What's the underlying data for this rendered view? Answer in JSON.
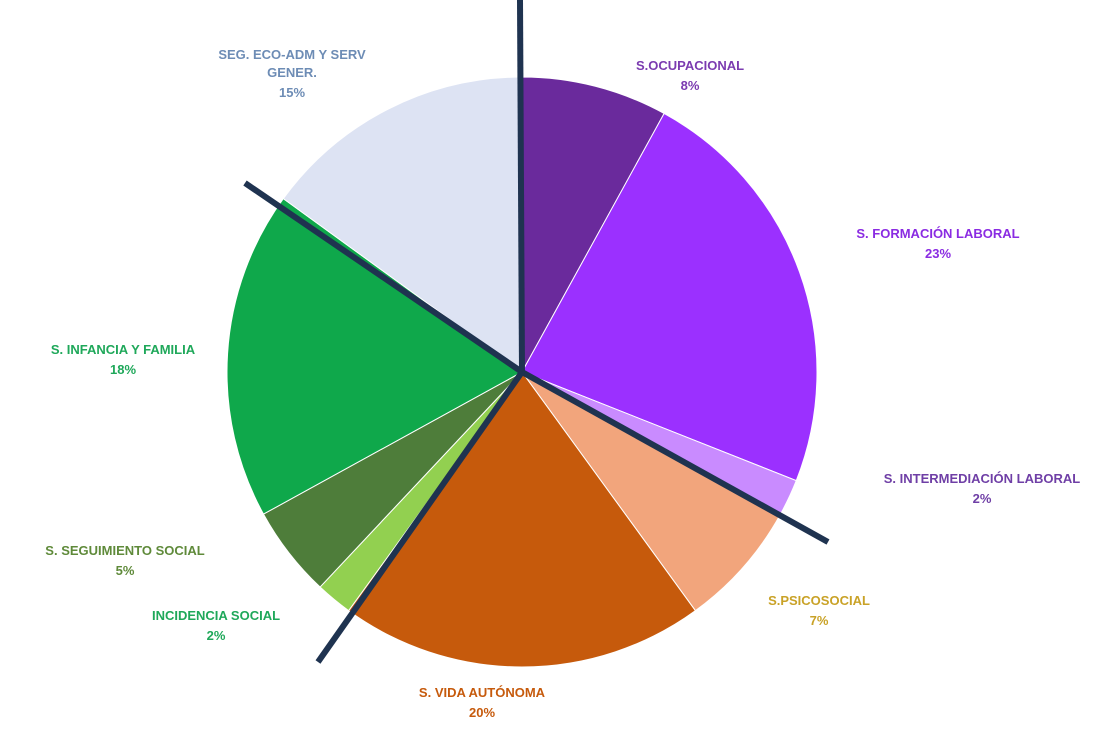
{
  "chart_data": {
    "type": "pie",
    "title": "",
    "slices": [
      {
        "name": "S.OCUPACIONAL",
        "value": 8,
        "value_label": "8%",
        "color": "#6A2A9C",
        "label_color": "#7B3BB0"
      },
      {
        "name": "S. FORMACIÓN LABORAL",
        "value": 23,
        "value_label": "23%",
        "color": "#9B30FF",
        "label_color": "#8A2BE2"
      },
      {
        "name": "S. INTERMEDIACIÓN LABORAL",
        "value": 2,
        "value_label": "2%",
        "color": "#C98BFF",
        "label_color": "#6F3FA6"
      },
      {
        "name": "S.PSICOSOCIAL",
        "value": 7,
        "value_label": "7%",
        "color": "#F2A57C",
        "label_color": "#C9A227"
      },
      {
        "name": "S. VIDA AUTÓNOMA",
        "value": 20,
        "value_label": "20%",
        "color": "#C65A0C",
        "label_color": "#C65A0C"
      },
      {
        "name": "INCIDENCIA SOCIAL",
        "value": 2,
        "value_label": "2%",
        "color": "#92D050",
        "label_color": "#1FA85A"
      },
      {
        "name": "S. SEGUIMIENTO SOCIAL",
        "value": 5,
        "value_label": "5%",
        "color": "#4E7D3A",
        "label_color": "#5F8A3A"
      },
      {
        "name": "S. INFANCIA Y FAMILIA",
        "value": 18,
        "value_label": "18%",
        "color": "#0FA84B",
        "label_color": "#1FA85A"
      },
      {
        "name": "SEG. ECO-ADM Y SERV GENER.",
        "value": 15,
        "value_label": "15%",
        "color": "#DDE3F3",
        "label_color": "#6D8CB5"
      }
    ],
    "divider_color": "#1F3350",
    "legend": "none"
  }
}
